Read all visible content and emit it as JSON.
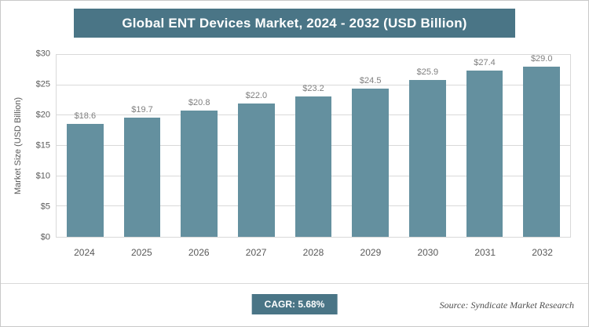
{
  "title": "Global ENT Devices Market, 2024 - 2032 (USD Billion)",
  "colors": {
    "header_bg": "#4a7586",
    "bar": "#64909f",
    "badge_bg": "#4a7586",
    "grid": "#d9d9d9",
    "axis_text": "#595959",
    "value_label": "#7f7f7f"
  },
  "chart_data": {
    "type": "bar",
    "title": "Global ENT Devices Market, 2024 - 2032 (USD Billion)",
    "categories": [
      "2024",
      "2025",
      "2026",
      "2027",
      "2028",
      "2029",
      "2030",
      "2031",
      "2032"
    ],
    "values": [
      18.6,
      19.7,
      20.8,
      22.0,
      23.2,
      24.5,
      25.9,
      27.4,
      29.0
    ],
    "value_labels": [
      "$18.6",
      "$19.7",
      "$20.8",
      "$22.0",
      "$23.2",
      "$24.5",
      "$25.9",
      "$27.4",
      "$29.0"
    ],
    "xlabel": "",
    "ylabel": "Market Size (USD Billion)",
    "ylim": [
      0,
      30
    ],
    "ytick_step": 5,
    "ytick_prefix": "$",
    "ytick_labels": [
      "$0",
      "$5",
      "$10",
      "$15",
      "$20",
      "$25",
      "$30"
    ],
    "grid": true,
    "legend": false
  },
  "footer": {
    "cagr_label": "CAGR: 5.68%",
    "source": "Source: Syndicate Market Research"
  }
}
